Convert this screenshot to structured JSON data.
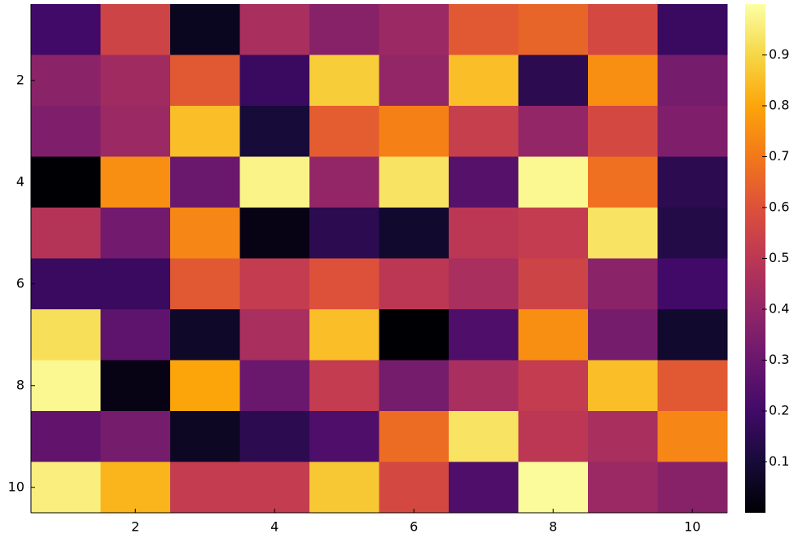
{
  "chart_data": {
    "type": "heatmap",
    "x": [
      1,
      2,
      3,
      4,
      5,
      6,
      7,
      8,
      9,
      10
    ],
    "y": [
      1,
      2,
      3,
      4,
      5,
      6,
      7,
      8,
      9,
      10
    ],
    "z": [
      [
        0.2,
        0.55,
        0.05,
        0.45,
        0.37,
        0.42,
        0.62,
        0.65,
        0.57,
        0.18
      ],
      [
        0.38,
        0.43,
        0.62,
        0.18,
        0.88,
        0.4,
        0.85,
        0.15,
        0.75,
        0.33
      ],
      [
        0.35,
        0.42,
        0.85,
        0.1,
        0.63,
        0.72,
        0.53,
        0.4,
        0.57,
        0.35
      ],
      [
        0.0,
        0.75,
        0.3,
        0.97,
        0.4,
        0.93,
        0.25,
        0.98,
        0.68,
        0.15
      ],
      [
        0.48,
        0.32,
        0.73,
        0.03,
        0.15,
        0.08,
        0.5,
        0.52,
        0.93,
        0.13
      ],
      [
        0.18,
        0.18,
        0.62,
        0.52,
        0.6,
        0.5,
        0.45,
        0.55,
        0.38,
        0.2
      ],
      [
        0.92,
        0.27,
        0.07,
        0.45,
        0.85,
        0.0,
        0.23,
        0.75,
        0.33,
        0.08
      ],
      [
        0.98,
        0.03,
        0.8,
        0.3,
        0.52,
        0.33,
        0.45,
        0.52,
        0.85,
        0.62
      ],
      [
        0.28,
        0.33,
        0.06,
        0.15,
        0.23,
        0.67,
        0.93,
        0.5,
        0.45,
        0.73
      ],
      [
        0.96,
        0.83,
        0.52,
        0.52,
        0.87,
        0.57,
        0.23,
        0.99,
        0.42,
        0.37
      ]
    ],
    "xlim": [
      0.5,
      10.5
    ],
    "ylim": [
      0.5,
      10.5
    ],
    "yflip": true,
    "xticks": [
      2,
      4,
      6,
      8,
      10
    ],
    "yticks": [
      2,
      4,
      6,
      8,
      10
    ],
    "colormap": "inferno",
    "clim": [
      0,
      1
    ],
    "colorbar_ticks": [
      0.1,
      0.2,
      0.3,
      0.4,
      0.5,
      0.6,
      0.7,
      0.8,
      0.9
    ]
  }
}
